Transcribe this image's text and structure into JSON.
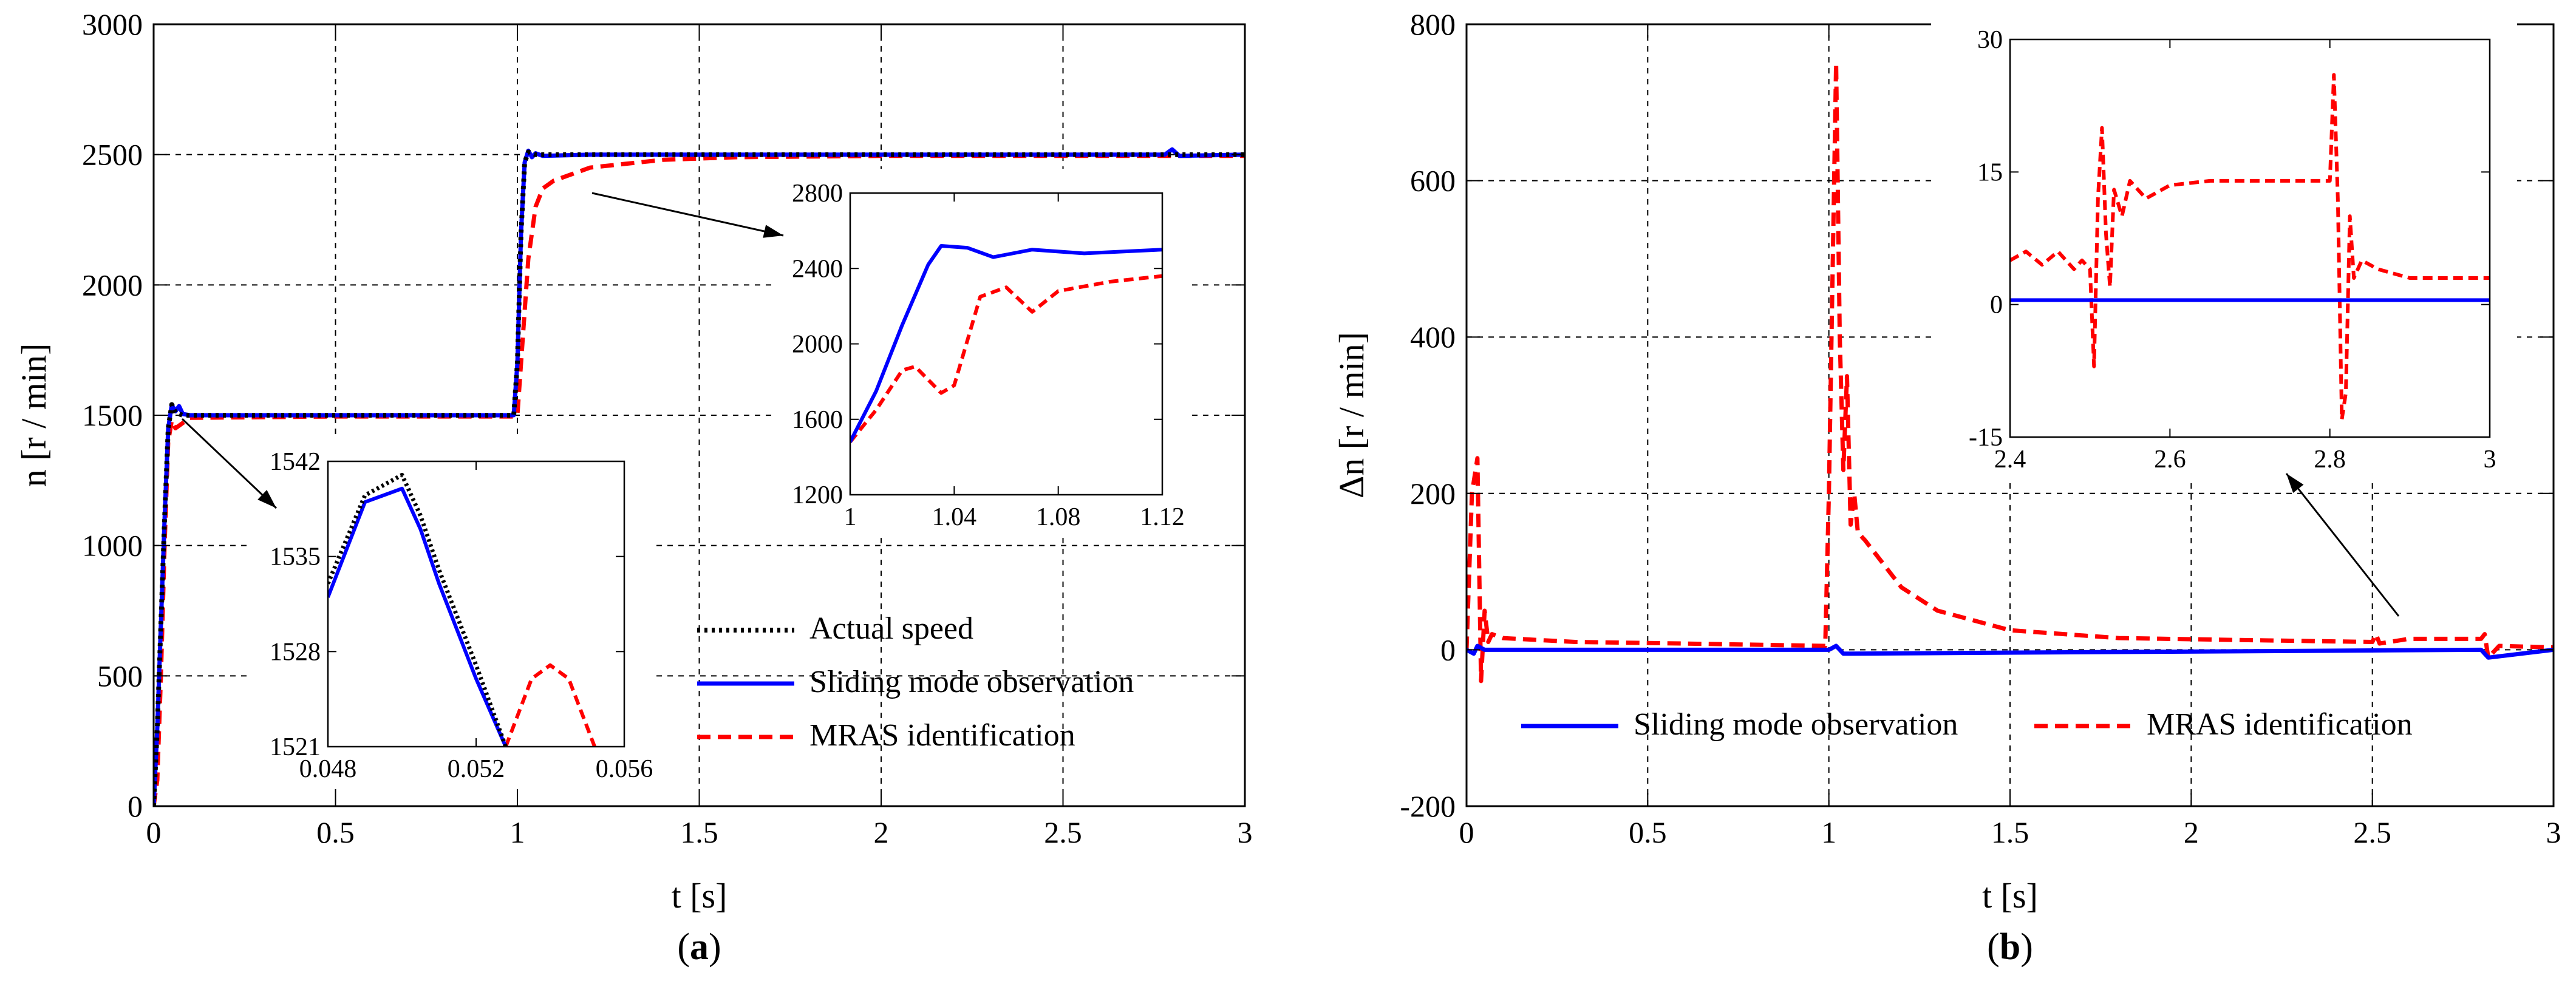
{
  "colors": {
    "actual": "#000000",
    "smo": "#0000ff",
    "mras": "#ff0000",
    "grid": "#000000"
  },
  "chart_data": [
    {
      "id": "a",
      "type": "line",
      "caption": {
        "open": "(",
        "letter": "a",
        "close": ")"
      },
      "xlabel": "t [s]",
      "ylabel": "n [r / min]",
      "xlim": [
        0,
        3
      ],
      "ylim": [
        0,
        3000
      ],
      "xticks": [
        0,
        0.5,
        1,
        1.5,
        2,
        2.5,
        3
      ],
      "xtick_labels": [
        "0",
        "0.5",
        "1",
        "1.5",
        "2",
        "2.5",
        "3"
      ],
      "yticks": [
        0,
        500,
        1000,
        1500,
        2000,
        2500,
        3000
      ],
      "ytick_labels": [
        "0",
        "500",
        "1000",
        "1500",
        "2000",
        "2500",
        "3000"
      ],
      "legend": {
        "position": "bottom-right",
        "entries": [
          {
            "name": "Actual speed",
            "style": "dotted",
            "color": "#000000"
          },
          {
            "name": "Sliding mode observation",
            "style": "solid",
            "color": "#0000ff"
          },
          {
            "name": "MRAS identification",
            "style": "dashed",
            "color": "#ff0000"
          }
        ]
      },
      "series": [
        {
          "name": "Actual speed",
          "style": "dotted",
          "color": "#000000",
          "x": [
            0,
            0.01,
            0.02,
            0.03,
            0.04,
            0.05,
            0.06,
            0.08,
            0.1,
            0.5,
            0.99,
            1.0,
            1.01,
            1.02,
            1.03,
            1.05,
            1.2,
            2.0,
            3.0
          ],
          "y": [
            0,
            300,
            700,
            1100,
            1450,
            1541,
            1510,
            1500,
            1500,
            1500,
            1500,
            1700,
            2200,
            2470,
            2510,
            2500,
            2500,
            2500,
            2500
          ]
        },
        {
          "name": "Sliding mode observation",
          "style": "solid",
          "color": "#0000ff",
          "x": [
            0,
            0.01,
            0.02,
            0.03,
            0.04,
            0.05,
            0.06,
            0.07,
            0.08,
            0.1,
            0.5,
            0.99,
            1.0,
            1.01,
            1.02,
            1.03,
            1.04,
            1.05,
            1.07,
            1.2,
            2.0,
            2.5,
            2.78,
            2.8,
            2.82,
            3.0
          ],
          "y": [
            0,
            300,
            700,
            1100,
            1450,
            1540,
            1515,
            1535,
            1505,
            1500,
            1500,
            1500,
            1700,
            2200,
            2470,
            2515,
            2490,
            2505,
            2495,
            2500,
            2500,
            2500,
            2500,
            2520,
            2495,
            2500
          ]
        },
        {
          "name": "MRAS identification",
          "style": "dashed",
          "color": "#ff0000",
          "x": [
            0,
            0.01,
            0.02,
            0.03,
            0.04,
            0.05,
            0.06,
            0.08,
            0.1,
            0.5,
            0.99,
            1.0,
            1.01,
            1.02,
            1.03,
            1.05,
            1.07,
            1.1,
            1.2,
            1.4,
            1.6,
            2.0,
            3.0
          ],
          "y": [
            0,
            100,
            500,
            1000,
            1400,
            1480,
            1450,
            1470,
            1490,
            1495,
            1495,
            1500,
            1700,
            1900,
            2100,
            2300,
            2370,
            2400,
            2450,
            2480,
            2490,
            2495,
            2495
          ]
        }
      ],
      "insets": [
        {
          "id": "a-inset-1",
          "xlim": [
            0.048,
            0.056
          ],
          "ylim": [
            1521,
            1542
          ],
          "xticks": [
            0.048,
            0.052,
            0.056
          ],
          "xtick_labels": [
            "0.048",
            "0.052",
            "0.056"
          ],
          "yticks": [
            1521,
            1528,
            1535,
            1542
          ],
          "ytick_labels": [
            "1521",
            "1528",
            "1535",
            "1542"
          ],
          "series": [
            {
              "name": "Actual speed",
              "style": "dotted",
              "color": "#000000",
              "x": [
                0.048,
                0.049,
                0.05,
                0.0505,
                0.051,
                0.052,
                0.0528
              ],
              "y": [
                1533,
                1539.5,
                1541,
                1538,
                1534,
                1527,
                1521
              ]
            },
            {
              "name": "Sliding mode observation",
              "style": "solid",
              "color": "#0000ff",
              "x": [
                0.048,
                0.049,
                0.05,
                0.0505,
                0.051,
                0.052,
                0.0528
              ],
              "y": [
                1532,
                1539,
                1540,
                1537,
                1533,
                1526,
                1521
              ]
            },
            {
              "name": "MRAS identification",
              "style": "dashed",
              "color": "#ff0000",
              "x": [
                0.0528,
                0.0535,
                0.054,
                0.0545,
                0.0552
              ],
              "y": [
                1521,
                1526,
                1527,
                1526,
                1521
              ]
            }
          ]
        },
        {
          "id": "a-inset-2",
          "xlim": [
            1,
            1.12
          ],
          "ylim": [
            1200,
            2800
          ],
          "xticks": [
            1,
            1.04,
            1.08,
            1.12
          ],
          "xtick_labels": [
            "1",
            "1.04",
            "1.08",
            "1.12"
          ],
          "yticks": [
            1200,
            1600,
            2000,
            2400,
            2800
          ],
          "ytick_labels": [
            "1200",
            "1600",
            "2000",
            "2400",
            "2800"
          ],
          "series": [
            {
              "name": "Sliding mode observation",
              "style": "solid",
              "color": "#0000ff",
              "x": [
                1.0,
                1.01,
                1.02,
                1.03,
                1.035,
                1.045,
                1.055,
                1.07,
                1.09,
                1.12
              ],
              "y": [
                1480,
                1750,
                2100,
                2420,
                2520,
                2510,
                2460,
                2500,
                2480,
                2500
              ]
            },
            {
              "name": "MRAS identification",
              "style": "dashed",
              "color": "#ff0000",
              "x": [
                1.0,
                1.01,
                1.02,
                1.025,
                1.035,
                1.04,
                1.05,
                1.06,
                1.07,
                1.08,
                1.1,
                1.12
              ],
              "y": [
                1480,
                1650,
                1860,
                1880,
                1740,
                1780,
                2250,
                2300,
                2170,
                2280,
                2330,
                2360
              ]
            }
          ]
        }
      ]
    },
    {
      "id": "b",
      "type": "line",
      "caption": {
        "open": "(",
        "letter": "b",
        "close": ")"
      },
      "xlabel": "t [s]",
      "ylabel": "Δn [r / min]",
      "xlim": [
        0,
        3
      ],
      "ylim": [
        -200,
        800
      ],
      "xticks": [
        0,
        0.5,
        1,
        1.5,
        2,
        2.5,
        3
      ],
      "xtick_labels": [
        "0",
        "0.5",
        "1",
        "1.5",
        "2",
        "2.5",
        "3"
      ],
      "yticks": [
        -200,
        0,
        200,
        400,
        600,
        800
      ],
      "ytick_labels": [
        "-200",
        "0",
        "200",
        "400",
        "600",
        "800"
      ],
      "legend": {
        "position": "bottom",
        "entries": [
          {
            "name": "Sliding mode observation",
            "style": "solid",
            "color": "#0000ff"
          },
          {
            "name": "MRAS identification",
            "style": "dashed",
            "color": "#ff0000"
          }
        ]
      },
      "series": [
        {
          "name": "Sliding mode observation",
          "style": "solid",
          "color": "#0000ff",
          "x": [
            0,
            0.02,
            0.03,
            0.05,
            1.0,
            1.02,
            1.04,
            2.8,
            2.82,
            3.0
          ],
          "y": [
            0,
            -5,
            5,
            0,
            0,
            5,
            -5,
            0,
            -10,
            0
          ]
        },
        {
          "name": "MRAS identification",
          "style": "dashed",
          "color": "#ff0000",
          "x": [
            0,
            0.015,
            0.03,
            0.04,
            0.05,
            0.06,
            0.07,
            0.1,
            0.3,
            0.6,
            0.99,
            1.0,
            1.02,
            1.03,
            1.04,
            1.05,
            1.06,
            1.07,
            1.08,
            1.1,
            1.15,
            1.2,
            1.3,
            1.5,
            1.8,
            2.2,
            2.5,
            2.51,
            2.52,
            2.6,
            2.8,
            2.81,
            2.82,
            2.85,
            3.0
          ],
          "y": [
            0,
            200,
            245,
            -40,
            50,
            10,
            20,
            15,
            10,
            8,
            5,
            200,
            750,
            400,
            230,
            350,
            160,
            200,
            150,
            140,
            110,
            80,
            50,
            25,
            15,
            12,
            10,
            20,
            8,
            14,
            14,
            20,
            -10,
            5,
            3
          ]
        }
      ],
      "insets": [
        {
          "id": "b-inset-1",
          "xlim": [
            2.4,
            3
          ],
          "ylim": [
            -15,
            30
          ],
          "xticks": [
            2.4,
            2.6,
            2.8,
            3
          ],
          "xtick_labels": [
            "2.4",
            "2.6",
            "2.8",
            "3"
          ],
          "yticks": [
            -15,
            0,
            15,
            30
          ],
          "ytick_labels": [
            "-15",
            "0",
            "15",
            "30"
          ],
          "series": [
            {
              "name": "Sliding mode observation",
              "style": "solid",
              "color": "#0000ff",
              "x": [
                2.4,
                3.0
              ],
              "y": [
                0.5,
                0.5
              ]
            },
            {
              "name": "MRAS identification",
              "style": "dashed",
              "color": "#ff0000",
              "x": [
                2.4,
                2.42,
                2.44,
                2.46,
                2.48,
                2.49,
                2.5,
                2.505,
                2.51,
                2.515,
                2.52,
                2.525,
                2.53,
                2.54,
                2.55,
                2.57,
                2.6,
                2.65,
                2.7,
                2.75,
                2.79,
                2.8,
                2.805,
                2.81,
                2.815,
                2.82,
                2.825,
                2.83,
                2.84,
                2.86,
                2.9,
                3.0
              ],
              "y": [
                5,
                6,
                4.5,
                6,
                4,
                5,
                4,
                -7,
                12,
                20,
                8,
                2,
                13,
                10,
                14,
                12,
                13.5,
                14,
                14,
                14,
                14,
                14,
                26,
                12,
                -13,
                -10,
                10,
                3,
                5,
                4,
                3,
                3
              ]
            }
          ]
        }
      ]
    }
  ]
}
